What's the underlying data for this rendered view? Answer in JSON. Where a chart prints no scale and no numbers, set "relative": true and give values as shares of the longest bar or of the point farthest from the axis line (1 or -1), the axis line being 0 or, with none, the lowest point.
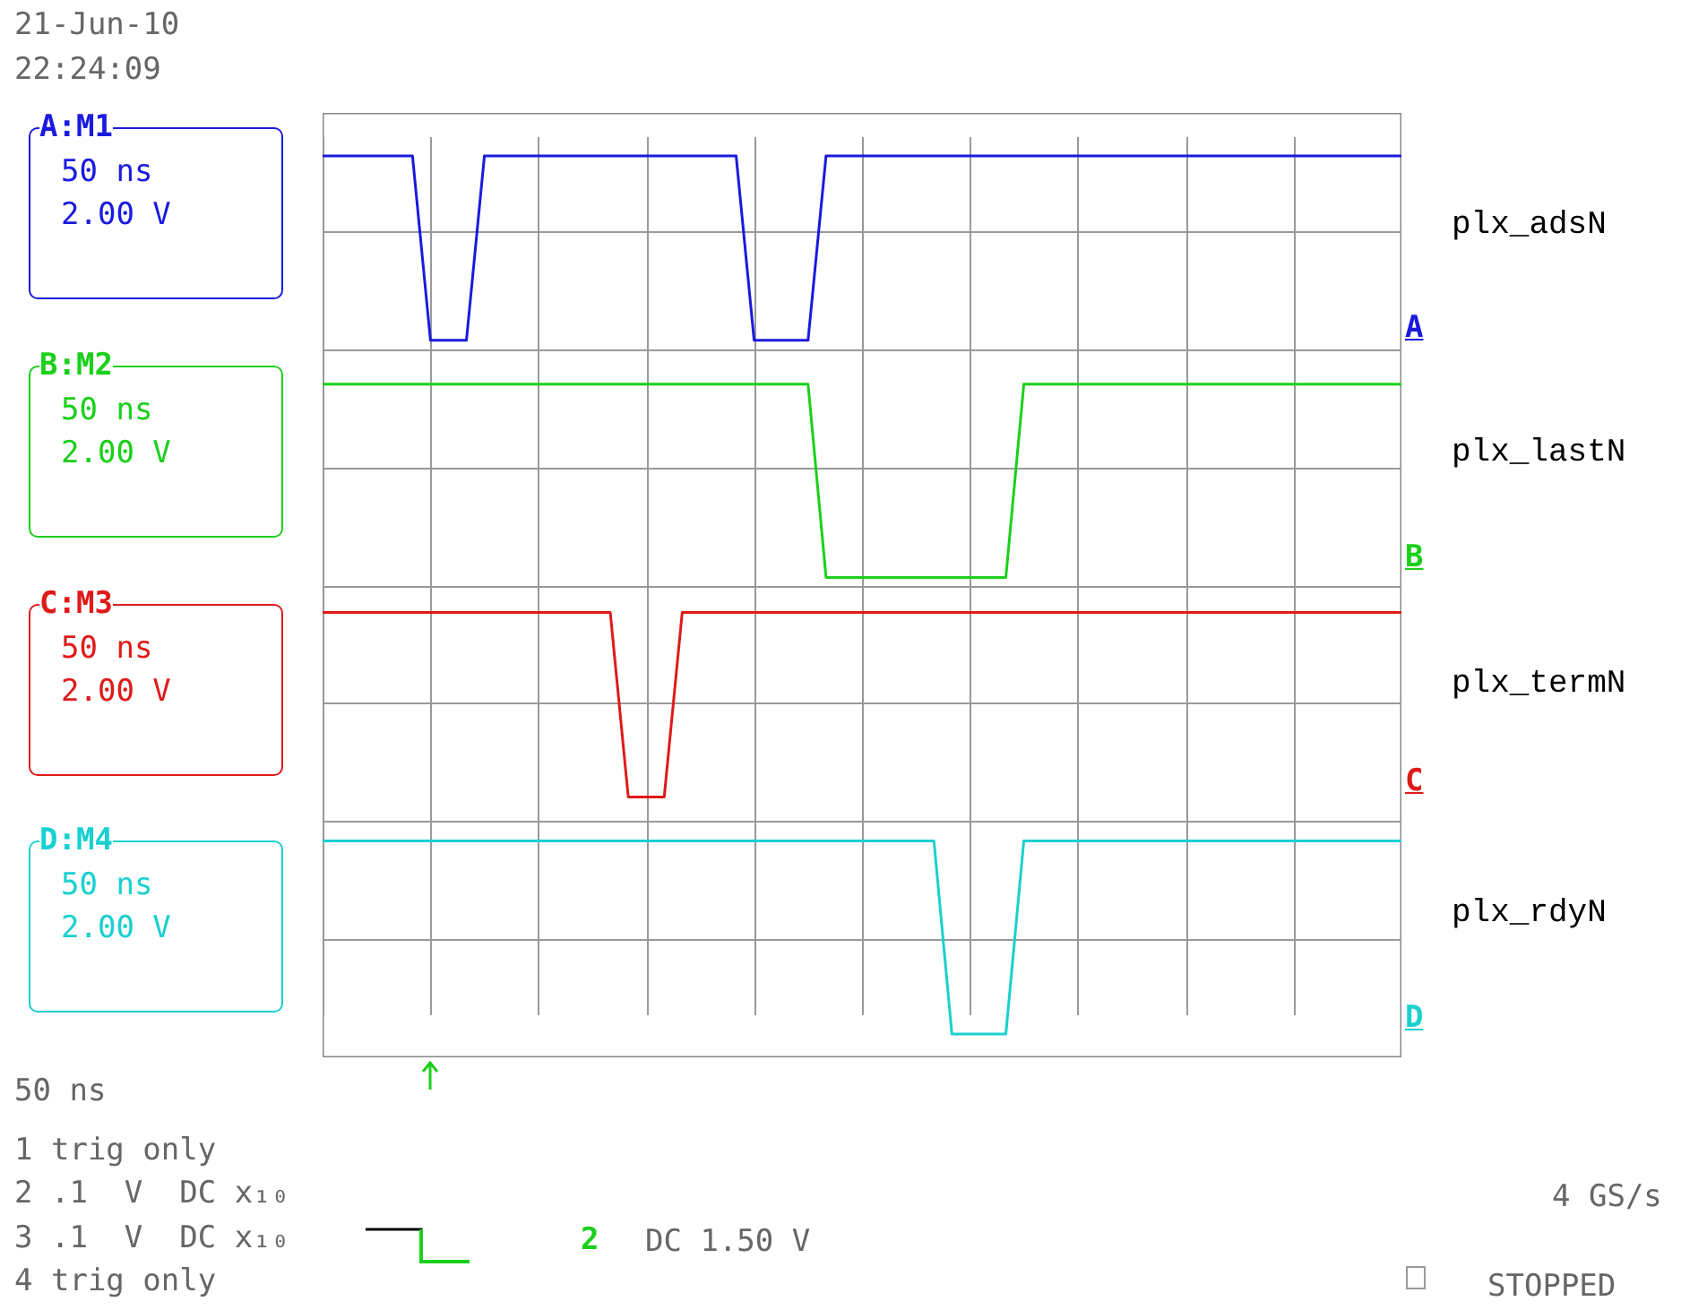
{
  "chart_data": {
    "type": "line",
    "relative": true,
    "grid": true,
    "categories": [
      null,
      null,
      null,
      null,
      null,
      null,
      null,
      null,
      null,
      null,
      null,
      null,
      null,
      null,
      null,
      null,
      null,
      null,
      null,
      null,
      null,
      null,
      null,
      null,
      null,
      null,
      null,
      null,
      null,
      null,
      null,
      null,
      null,
      null,
      null,
      null,
      null,
      null,
      null,
      null,
      null,
      null,
      null,
      null,
      null,
      null,
      null,
      null,
      null,
      null,
      null,
      null,
      null,
      null,
      null,
      null,
      null,
      null,
      null,
      null,
      null
    ],
    "series": [
      {
        "name": "plx_adsN",
        "color": "#1a1ae0",
        "values": [
          1,
          1,
          1,
          1,
          1,
          1,
          0.79,
          0.79,
          0.79,
          1,
          1,
          1,
          1,
          1,
          1,
          1,
          1,
          1,
          1,
          1,
          1,
          1,
          1,
          1,
          0.79,
          0.79,
          0.79,
          0.79,
          1,
          1,
          1,
          1,
          1,
          1,
          1,
          1,
          1,
          1,
          1,
          1,
          1,
          1,
          1,
          1,
          1,
          1,
          1,
          1,
          1,
          1,
          1,
          1,
          1,
          1,
          1,
          1,
          1,
          1,
          1,
          1,
          1
        ]
      },
      {
        "name": "plx_lastN",
        "color": "#1ad01a",
        "values": [
          0.74,
          0.74,
          0.74,
          0.74,
          0.74,
          0.74,
          0.74,
          0.74,
          0.74,
          0.74,
          0.74,
          0.74,
          0.74,
          0.74,
          0.74,
          0.74,
          0.74,
          0.74,
          0.74,
          0.74,
          0.74,
          0.74,
          0.74,
          0.74,
          0.74,
          0.74,
          0.74,
          0.74,
          0.52,
          0.52,
          0.52,
          0.52,
          0.52,
          0.52,
          0.52,
          0.52,
          0.52,
          0.52,
          0.52,
          0.74,
          0.74,
          0.74,
          0.74,
          0.74,
          0.74,
          0.74,
          0.74,
          0.74,
          0.74,
          0.74,
          0.74,
          0.74,
          0.74,
          0.74,
          0.74,
          0.74,
          0.74,
          0.74,
          0.74,
          0.74,
          0.74
        ]
      },
      {
        "name": "plx_termN",
        "color": "#e01a1a",
        "values": [
          0.48,
          0.48,
          0.48,
          0.48,
          0.48,
          0.48,
          0.48,
          0.48,
          0.48,
          0.48,
          0.48,
          0.48,
          0.48,
          0.48,
          0.48,
          0.48,
          0.48,
          0.27,
          0.27,
          0.27,
          0.48,
          0.48,
          0.48,
          0.48,
          0.48,
          0.48,
          0.48,
          0.48,
          0.48,
          0.48,
          0.48,
          0.48,
          0.48,
          0.48,
          0.48,
          0.48,
          0.48,
          0.48,
          0.48,
          0.48,
          0.48,
          0.48,
          0.48,
          0.48,
          0.48,
          0.48,
          0.48,
          0.48,
          0.48,
          0.48,
          0.48,
          0.48,
          0.48,
          0.48,
          0.48,
          0.48,
          0.48,
          0.48,
          0.48,
          0.48,
          0.48
        ]
      },
      {
        "name": "plx_rdyN",
        "color": "#1ad0d0",
        "values": [
          0.22,
          0.22,
          0.22,
          0.22,
          0.22,
          0.22,
          0.22,
          0.22,
          0.22,
          0.22,
          0.22,
          0.22,
          0.22,
          0.22,
          0.22,
          0.22,
          0.22,
          0.22,
          0.22,
          0.22,
          0.22,
          0.22,
          0.22,
          0.22,
          0.22,
          0.22,
          0.22,
          0.22,
          0.22,
          0.22,
          0.22,
          0.22,
          0.22,
          0.22,
          0.22,
          0,
          0,
          0,
          0,
          0.22,
          0.22,
          0.22,
          0.22,
          0.22,
          0.22,
          0.22,
          0.22,
          0.22,
          0.22,
          0.22,
          0.22,
          0.22,
          0.22,
          0.22,
          0.22,
          0.22,
          0.22,
          0.22,
          0.22,
          0.22,
          0.22
        ]
      }
    ],
    "annotations": [
      "21-Jun-10",
      "22:24:09",
      "A:M1",
      "50 ns",
      "2.00 V",
      "B:M2",
      "50 ns",
      "2.00 V",
      "C:M3",
      "50 ns",
      "2.00 V",
      "D:M4",
      "50 ns",
      "2.00 V",
      "A",
      "B",
      "C",
      "D",
      "50 ns",
      "1 trig only",
      "2 .1  V  DC x₁₀",
      "3 .1  V  DC x₁₀",
      "4 trig only",
      "2",
      "DC 1.50 V",
      "4 GS/s",
      "STOPPED"
    ]
  }
}
